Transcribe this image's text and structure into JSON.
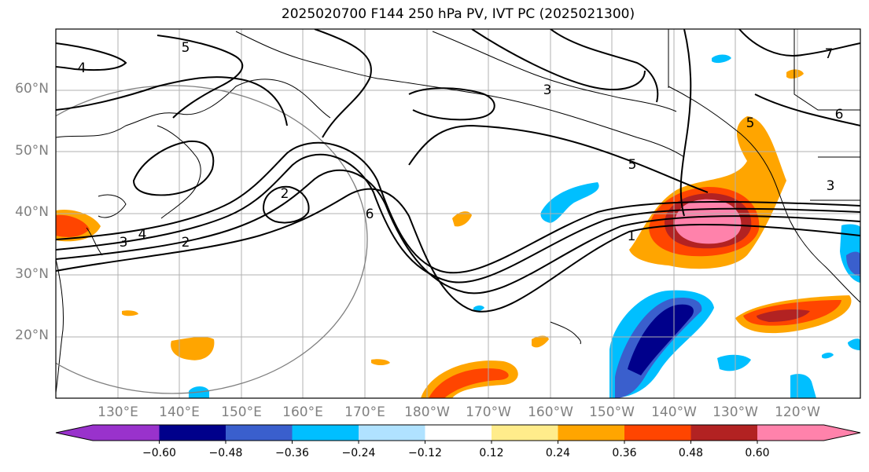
{
  "title": "2025020700 F144 250 hPa PV, IVT PC (2025021300)",
  "lat_labels": [
    "60°N",
    "50°N",
    "40°N",
    "30°N",
    "20°N"
  ],
  "lon_labels": [
    "130°E",
    "140°E",
    "150°E",
    "160°E",
    "170°E",
    "180°W",
    "170°W",
    "160°W",
    "150°W",
    "140°W",
    "130°W",
    "120°W"
  ],
  "contour_labels": [
    "5",
    "4",
    "3",
    "7",
    "6",
    "5",
    "2",
    "6",
    "4",
    "3",
    "2",
    "1",
    "3",
    "5"
  ],
  "colorbar": {
    "tick_labels": [
      "−0.60",
      "−0.48",
      "−0.36",
      "−0.24",
      "−0.12",
      "0.12",
      "0.24",
      "0.36",
      "0.48",
      "0.60"
    ],
    "colors": [
      "#9932cc",
      "#00008b",
      "#3a5fcd",
      "#00bfff",
      "#b0e2ff",
      "#ffffff",
      "#ffec8b",
      "#ffa500",
      "#ff4500",
      "#b22222",
      "#ff82ab"
    ]
  }
}
